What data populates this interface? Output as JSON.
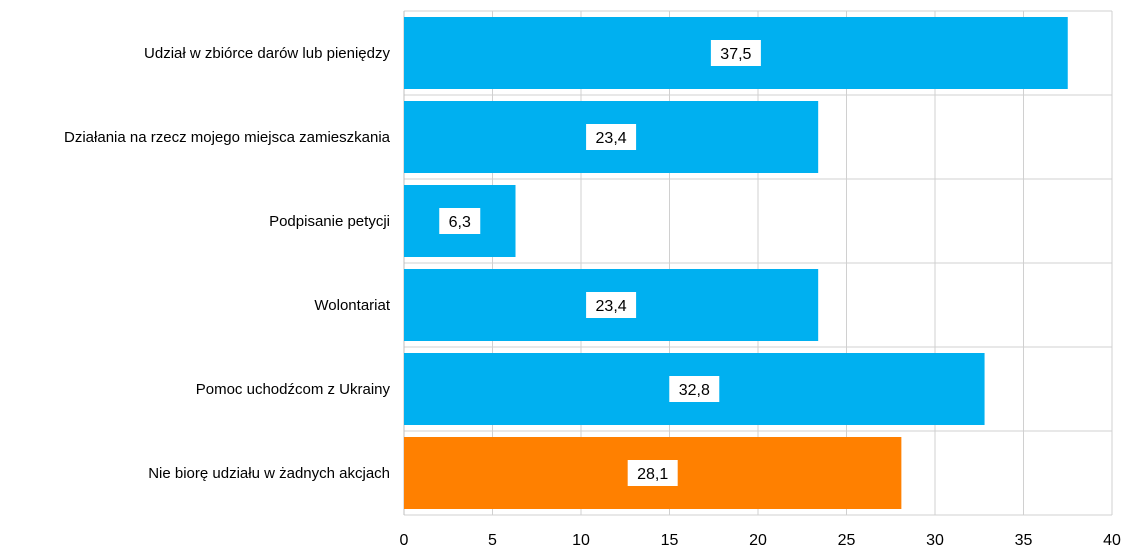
{
  "chart_data": {
    "type": "bar",
    "orientation": "horizontal",
    "categories": [
      "Udział w zbiórce darów lub pieniędzy",
      "Działania na rzecz mojego miejsca zamieszkania",
      "Podpisanie petycji",
      "Wolontariat",
      "Pomoc uchodźcom z Ukrainy",
      "Nie biorę udziału w żadnych akcjach"
    ],
    "values": [
      37.5,
      23.4,
      6.3,
      23.4,
      32.8,
      28.1
    ],
    "data_labels": [
      "37,5",
      "23,4",
      "6,3",
      "23,4",
      "32,8",
      "28,1"
    ],
    "bar_colors": [
      "#00b0f0",
      "#00b0f0",
      "#00b0f0",
      "#00b0f0",
      "#00b0f0",
      "#ff8000"
    ],
    "xlim": [
      0,
      40
    ],
    "xticks": [
      0,
      5,
      10,
      15,
      20,
      25,
      30,
      35,
      40
    ],
    "grid": true,
    "legend": "none",
    "title": "",
    "xlabel": "",
    "ylabel": ""
  }
}
